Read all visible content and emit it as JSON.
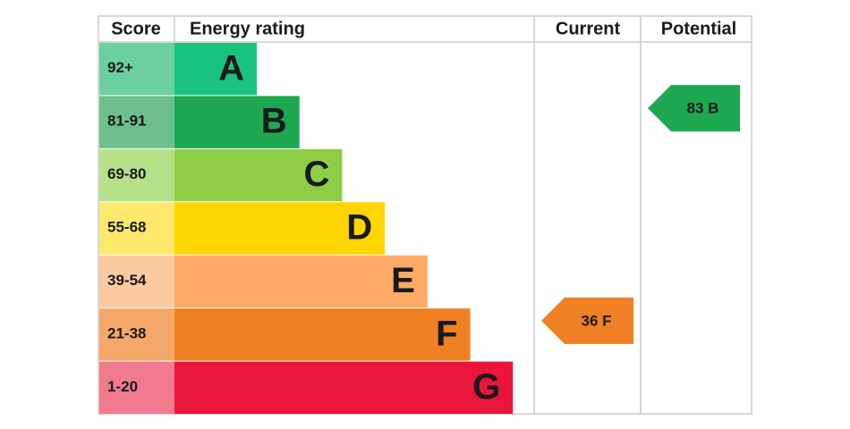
{
  "headers": {
    "score": "Score",
    "rating": "Energy rating",
    "current": "Current",
    "potential": "Potential"
  },
  "bands": [
    {
      "score": "92+",
      "letter": "A",
      "color": "#19c37d",
      "score_color": "#6ccf9f"
    },
    {
      "score": "81-91",
      "letter": "B",
      "color": "#1fa852",
      "score_color": "#6dc08b"
    },
    {
      "score": "69-80",
      "letter": "C",
      "color": "#8dce46",
      "score_color": "#b5e08a"
    },
    {
      "score": "55-68",
      "letter": "D",
      "color": "#ffd500",
      "score_color": "#ffe86b"
    },
    {
      "score": "39-54",
      "letter": "E",
      "color": "#fcaa65",
      "score_color": "#fdcaa0"
    },
    {
      "score": "21-38",
      "letter": "F",
      "color": "#ef8023",
      "score_color": "#f4a86a"
    },
    {
      "score": "1-20",
      "letter": "G",
      "color": "#e9153b",
      "score_color": "#f27a8f"
    }
  ],
  "current": {
    "label": "36 F"
  },
  "potential": {
    "label": "83 B"
  }
}
